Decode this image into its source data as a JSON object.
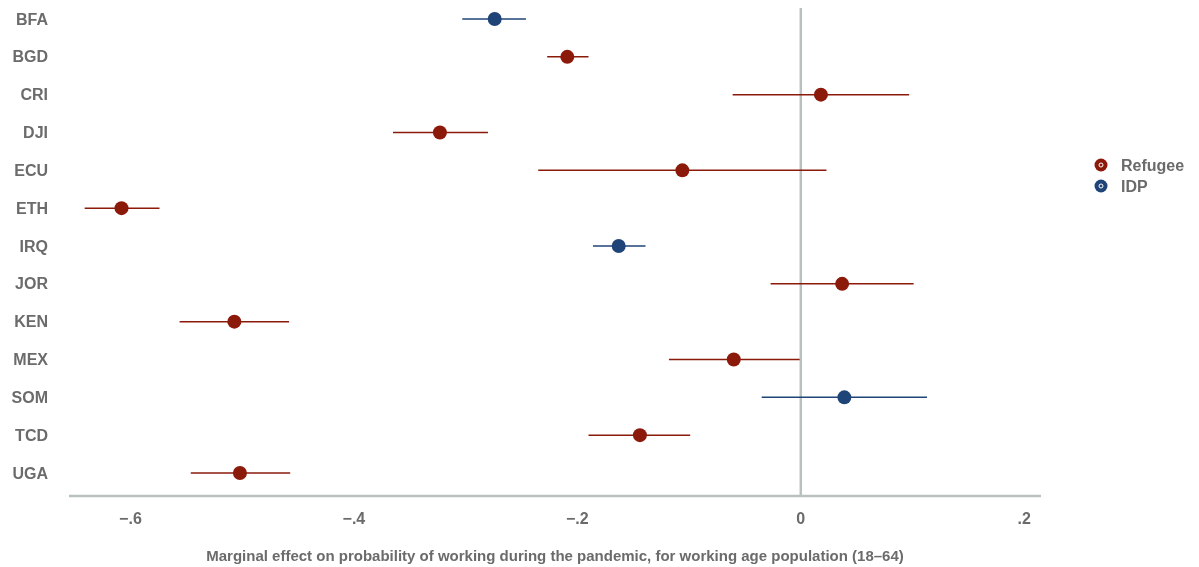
{
  "chart_data": {
    "type": "scatter",
    "orientation": "horizontal",
    "xlabel": "Marginal effect on probability of working during the pandemic, for working age population (18–64)",
    "categories": [
      "BFA",
      "BGD",
      "CRI",
      "DJI",
      "ECU",
      "ETH",
      "IRQ",
      "JOR",
      "KEN",
      "MEX",
      "SOM",
      "TCD",
      "UGA"
    ],
    "series": [
      {
        "name": "Refugee",
        "color": "#8b1a0b",
        "values": [
          null,
          -0.209,
          0.018,
          -0.323,
          -0.106,
          -0.608,
          null,
          0.037,
          -0.507,
          -0.06,
          null,
          -0.144,
          -0.502
        ],
        "errors": [
          null,
          [
            -0.227,
            -0.19
          ],
          [
            -0.061,
            0.097
          ],
          [
            -0.365,
            -0.28
          ],
          [
            -0.235,
            0.023
          ],
          [
            -0.641,
            -0.574
          ],
          null,
          [
            -0.027,
            0.101
          ],
          [
            -0.556,
            -0.458
          ],
          [
            -0.118,
            -0.001
          ],
          null,
          [
            -0.19,
            -0.099
          ],
          [
            -0.546,
            -0.457
          ]
        ]
      },
      {
        "name": "IDP",
        "color": "#1f4477",
        "values": [
          -0.274,
          null,
          null,
          null,
          null,
          null,
          -0.163,
          null,
          null,
          null,
          0.039,
          null,
          null
        ],
        "errors": [
          [
            -0.303,
            -0.246
          ],
          null,
          null,
          null,
          null,
          null,
          [
            -0.186,
            -0.139
          ],
          null,
          null,
          null,
          [
            -0.035,
            0.113
          ],
          null,
          null
        ]
      }
    ],
    "xlim": [
      -0.655,
      0.215
    ],
    "xticks": [
      {
        "value": -0.6,
        "label": "−.6"
      },
      {
        "value": -0.4,
        "label": "−.4"
      },
      {
        "value": -0.2,
        "label": "−.2"
      },
      0,
      {
        "value": 0.2,
        "label": ".2"
      }
    ],
    "ref_lines": [
      {
        "axis": "x",
        "value": 0,
        "color": "#b8c1bf"
      }
    ],
    "legend": "right",
    "marker": "circle"
  }
}
